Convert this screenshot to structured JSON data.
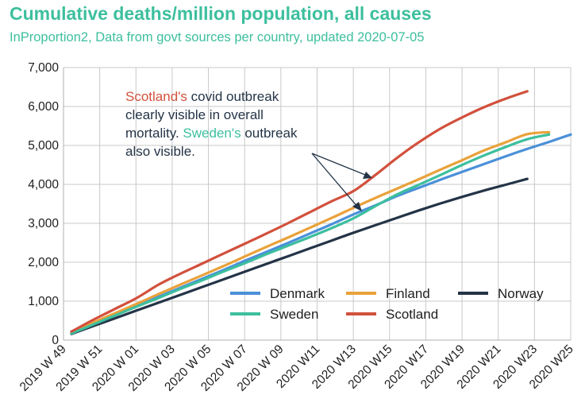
{
  "title": "Cumulative deaths/million population, all causes",
  "subtitle": "InProportion2, Data from govt sources per country, updated 2020-07-05",
  "annotation": {
    "line1_colored": "Scotland's",
    "line1_rest": " covid outbreak",
    "line2": "clearly visible in overall",
    "line3_start": "mortality. ",
    "line3_colored": "Sweden's",
    "line3_rest": " outbreak",
    "line4": "also visible."
  },
  "colors": {
    "title": "#3dbf9e",
    "Denmark": "#4a90d9",
    "Finland": "#e9a23b",
    "Norway": "#243447",
    "Sweden": "#3dbf9e",
    "Scotland": "#d2503c"
  },
  "chart_data": {
    "type": "line",
    "xlabel": "",
    "ylabel": "",
    "x_tick_labels": [
      "2019 W 49",
      "2019 W 51",
      "2020 W 01",
      "2020 W 03",
      "2020 W 05",
      "2020 W 07",
      "2020 W 09",
      "2020 W11",
      "2020 W13",
      "2020 W15",
      "2020 W17",
      "2020 W19",
      "2020 W21",
      "2020 W23",
      "2020 W25"
    ],
    "y_tick_labels": [
      "0",
      "1,000",
      "2,000",
      "3,000",
      "4,000",
      "5,000",
      "6,000",
      "7,000"
    ],
    "ylim": [
      0,
      7000
    ],
    "grid": true,
    "legend_position": "bottom-right",
    "series": [
      {
        "name": "Denmark",
        "values": [
          180,
          420,
          640,
          870,
          1110,
          1340,
          1570,
          1800,
          2040,
          2270,
          2500,
          2740,
          2980,
          3230,
          3460,
          3700,
          3910,
          4120,
          4320,
          4520,
          4720,
          4910,
          5090,
          5280
        ]
      },
      {
        "name": "Finland",
        "values": [
          200,
          450,
          690,
          930,
          1180,
          1420,
          1660,
          1900,
          2150,
          2400,
          2640,
          2890,
          3140,
          3400,
          3650,
          3890,
          4130,
          4380,
          4620,
          4870,
          5080,
          5290,
          5340
        ]
      },
      {
        "name": "Norway",
        "values": [
          160,
          360,
          560,
          760,
          960,
          1160,
          1360,
          1560,
          1760,
          1960,
          2160,
          2360,
          2560,
          2760,
          2950,
          3140,
          3330,
          3510,
          3680,
          3840,
          3990,
          4140
        ]
      },
      {
        "name": "Sweden",
        "values": [
          170,
          400,
          630,
          860,
          1080,
          1310,
          1530,
          1760,
          1980,
          2210,
          2430,
          2650,
          2880,
          3130,
          3440,
          3740,
          3990,
          4240,
          4500,
          4740,
          4960,
          5160,
          5280
        ]
      },
      {
        "name": "Scotland",
        "values": [
          220,
          520,
          800,
          1080,
          1420,
          1700,
          1960,
          2220,
          2480,
          2740,
          3010,
          3290,
          3570,
          3830,
          4240,
          4680,
          5080,
          5430,
          5720,
          5980,
          6200,
          6390
        ]
      }
    ]
  }
}
